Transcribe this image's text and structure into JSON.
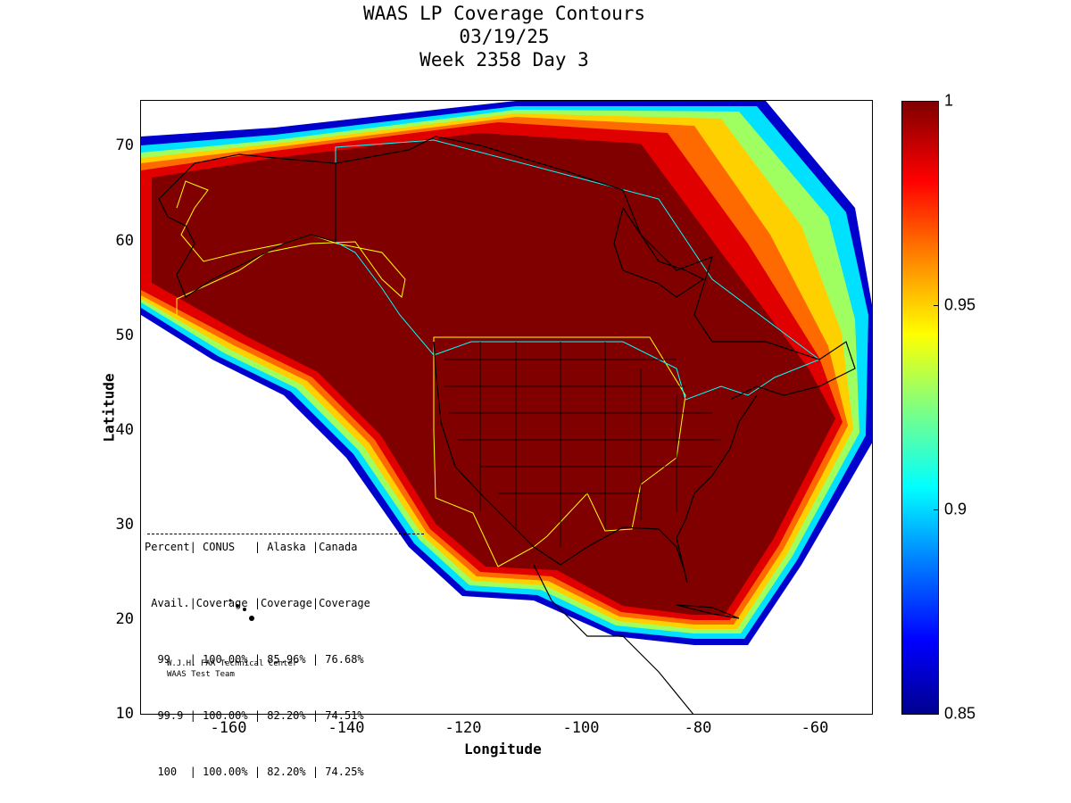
{
  "title": {
    "line1": "WAAS LP Coverage Contours",
    "line2": "03/19/25",
    "line3": "Week 2358 Day 3"
  },
  "axes": {
    "xlabel": "Longitude",
    "ylabel": "Latitude",
    "xticks": [
      "-160",
      "-140",
      "-120",
      "-100",
      "-80",
      "-60"
    ],
    "yticks": [
      "70",
      "60",
      "50",
      "40",
      "30",
      "20",
      "10"
    ],
    "xlim": [
      -175,
      -50
    ],
    "ylim": [
      10,
      75
    ]
  },
  "colorbar": {
    "ticks": [
      "1",
      "0.95",
      "0.9",
      "0.85"
    ],
    "range": [
      0.85,
      1
    ],
    "colormap": "jet"
  },
  "stats_table": {
    "header1": "Percent| CONUS   | Alaska |Canada",
    "header2": " Avail.|Coverage |Coverage|Coverage",
    "rows": [
      "  99   | 100.00% | 85.96% | 76.68%",
      "  99.9 | 100.00% | 82.20% | 74.51%",
      "  100  | 100.00% | 82.20% | 74.25%"
    ]
  },
  "credits": {
    "line1": "W.J.H. FAA Technical Center",
    "line2": "WAAS Test Team"
  },
  "colors": {
    "full_coverage": "#800000",
    "service_volume_conus_alaska": "#ffff00",
    "service_volume_canada": "#00ffff",
    "coastline": "#000000"
  }
}
